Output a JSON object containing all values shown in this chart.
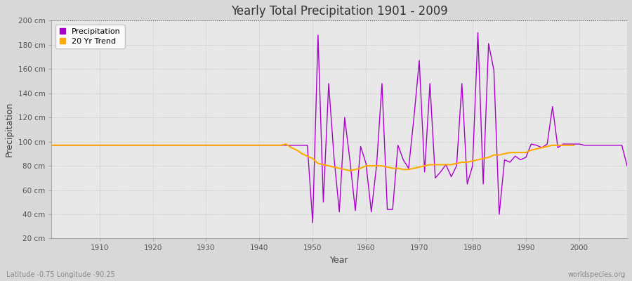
{
  "title": "Yearly Total Precipitation 1901 - 2009",
  "xlabel": "Year",
  "ylabel": "Precipitation",
  "subtitle_left": "Latitude -0.75 Longitude -90.25",
  "subtitle_right": "worldspecies.org",
  "bg_color": "#d8d8d8",
  "plot_bg_color": "#e8e8e8",
  "grid_color": "#c8c8c8",
  "precip_color": "#aa00cc",
  "trend_color": "#ffaa00",
  "ylim": [
    20,
    200
  ],
  "yticks": [
    20,
    40,
    60,
    80,
    100,
    120,
    140,
    160,
    180,
    200
  ],
  "ytick_labels": [
    "20 cm",
    "40 cm",
    "60 cm",
    "80 cm",
    "100 cm",
    "120 cm",
    "140 cm",
    "160 cm",
    "180 cm",
    "200 cm"
  ],
  "xticks": [
    1910,
    1920,
    1930,
    1940,
    1950,
    1960,
    1970,
    1980,
    1990,
    2000
  ],
  "years": [
    1901,
    1902,
    1903,
    1904,
    1905,
    1906,
    1907,
    1908,
    1909,
    1910,
    1911,
    1912,
    1913,
    1914,
    1915,
    1916,
    1917,
    1918,
    1919,
    1920,
    1921,
    1922,
    1923,
    1924,
    1925,
    1926,
    1927,
    1928,
    1929,
    1930,
    1931,
    1932,
    1933,
    1934,
    1935,
    1936,
    1937,
    1938,
    1939,
    1940,
    1941,
    1942,
    1943,
    1944,
    1945,
    1946,
    1947,
    1948,
    1949,
    1950,
    1951,
    1952,
    1953,
    1954,
    1955,
    1956,
    1957,
    1958,
    1959,
    1960,
    1961,
    1962,
    1963,
    1964,
    1965,
    1966,
    1967,
    1968,
    1969,
    1970,
    1971,
    1972,
    1973,
    1974,
    1975,
    1976,
    1977,
    1978,
    1979,
    1980,
    1981,
    1982,
    1983,
    1984,
    1985,
    1986,
    1987,
    1988,
    1989,
    1990,
    1991,
    1992,
    1993,
    1994,
    1995,
    1996,
    1997,
    1998,
    1999,
    2000,
    2001,
    2002,
    2003,
    2004,
    2005,
    2006,
    2007,
    2008,
    2009
  ],
  "precip": [
    97,
    97,
    97,
    97,
    97,
    97,
    97,
    97,
    97,
    97,
    97,
    97,
    97,
    97,
    97,
    97,
    97,
    97,
    97,
    97,
    97,
    97,
    97,
    97,
    97,
    97,
    97,
    97,
    97,
    97,
    97,
    97,
    97,
    97,
    97,
    97,
    97,
    97,
    97,
    97,
    97,
    97,
    97,
    97,
    97,
    97,
    97,
    97,
    97,
    33,
    188,
    50,
    148,
    87,
    42,
    120,
    84,
    43,
    96,
    82,
    42,
    81,
    148,
    44,
    44,
    97,
    85,
    78,
    120,
    167,
    75,
    148,
    70,
    75,
    81,
    71,
    80,
    148,
    65,
    80,
    190,
    65,
    181,
    159,
    40,
    85,
    83,
    88,
    85,
    87,
    98,
    97,
    95,
    98,
    129,
    95,
    98,
    98,
    98,
    98,
    97,
    97,
    97,
    97,
    97,
    97,
    97,
    97,
    80
  ],
  "trend": [
    97,
    97,
    97,
    97,
    97,
    97,
    97,
    97,
    97,
    97,
    97,
    97,
    97,
    97,
    97,
    97,
    97,
    97,
    97,
    97,
    97,
    97,
    97,
    97,
    97,
    97,
    97,
    97,
    97,
    97,
    97,
    97,
    97,
    97,
    97,
    97,
    97,
    97,
    97,
    97,
    97,
    97,
    97,
    97,
    98,
    95,
    93,
    90,
    88,
    86,
    82,
    81,
    80,
    79,
    78,
    77,
    76,
    77,
    78,
    80,
    80,
    80,
    80,
    79,
    78,
    78,
    77,
    77,
    78,
    79,
    80,
    81,
    81,
    81,
    81,
    81,
    82,
    83,
    83,
    84,
    85,
    86,
    87,
    89,
    89,
    90,
    91,
    91,
    91,
    91,
    93,
    94,
    95,
    96,
    97,
    97,
    97,
    97,
    97
  ]
}
